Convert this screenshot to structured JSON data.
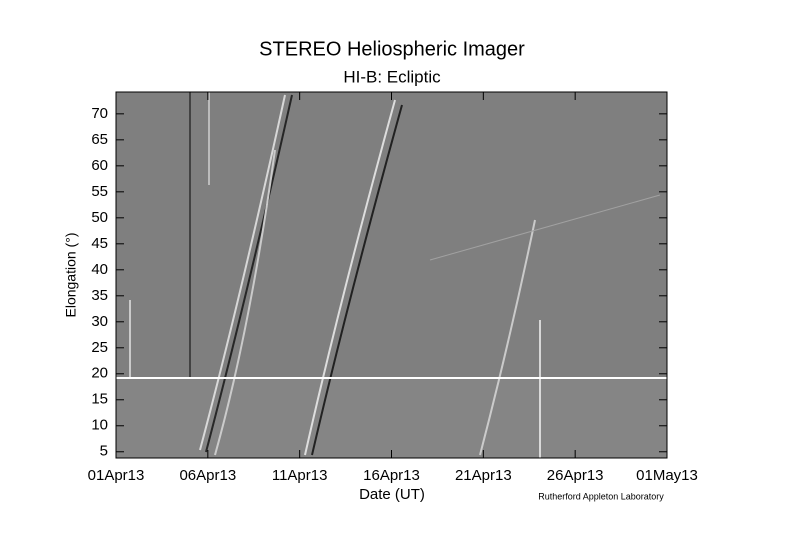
{
  "chart_data": {
    "type": "image",
    "title": "STEREO Heliospheric Imager",
    "subtitle": "HI-B: Ecliptic",
    "x_label": "Date (UT)",
    "y_label": "Elongation (°)",
    "credit": "Rutherford Appleton Laboratory",
    "xticks": [
      "01Apr13",
      "06Apr13",
      "11Apr13",
      "16Apr13",
      "21Apr13",
      "26Apr13",
      "01May13"
    ],
    "ylim": [
      3.8,
      74.2
    ],
    "yticks": [
      5,
      10,
      15,
      20,
      25,
      30,
      35,
      40,
      45,
      50,
      55,
      60,
      65,
      70
    ]
  }
}
